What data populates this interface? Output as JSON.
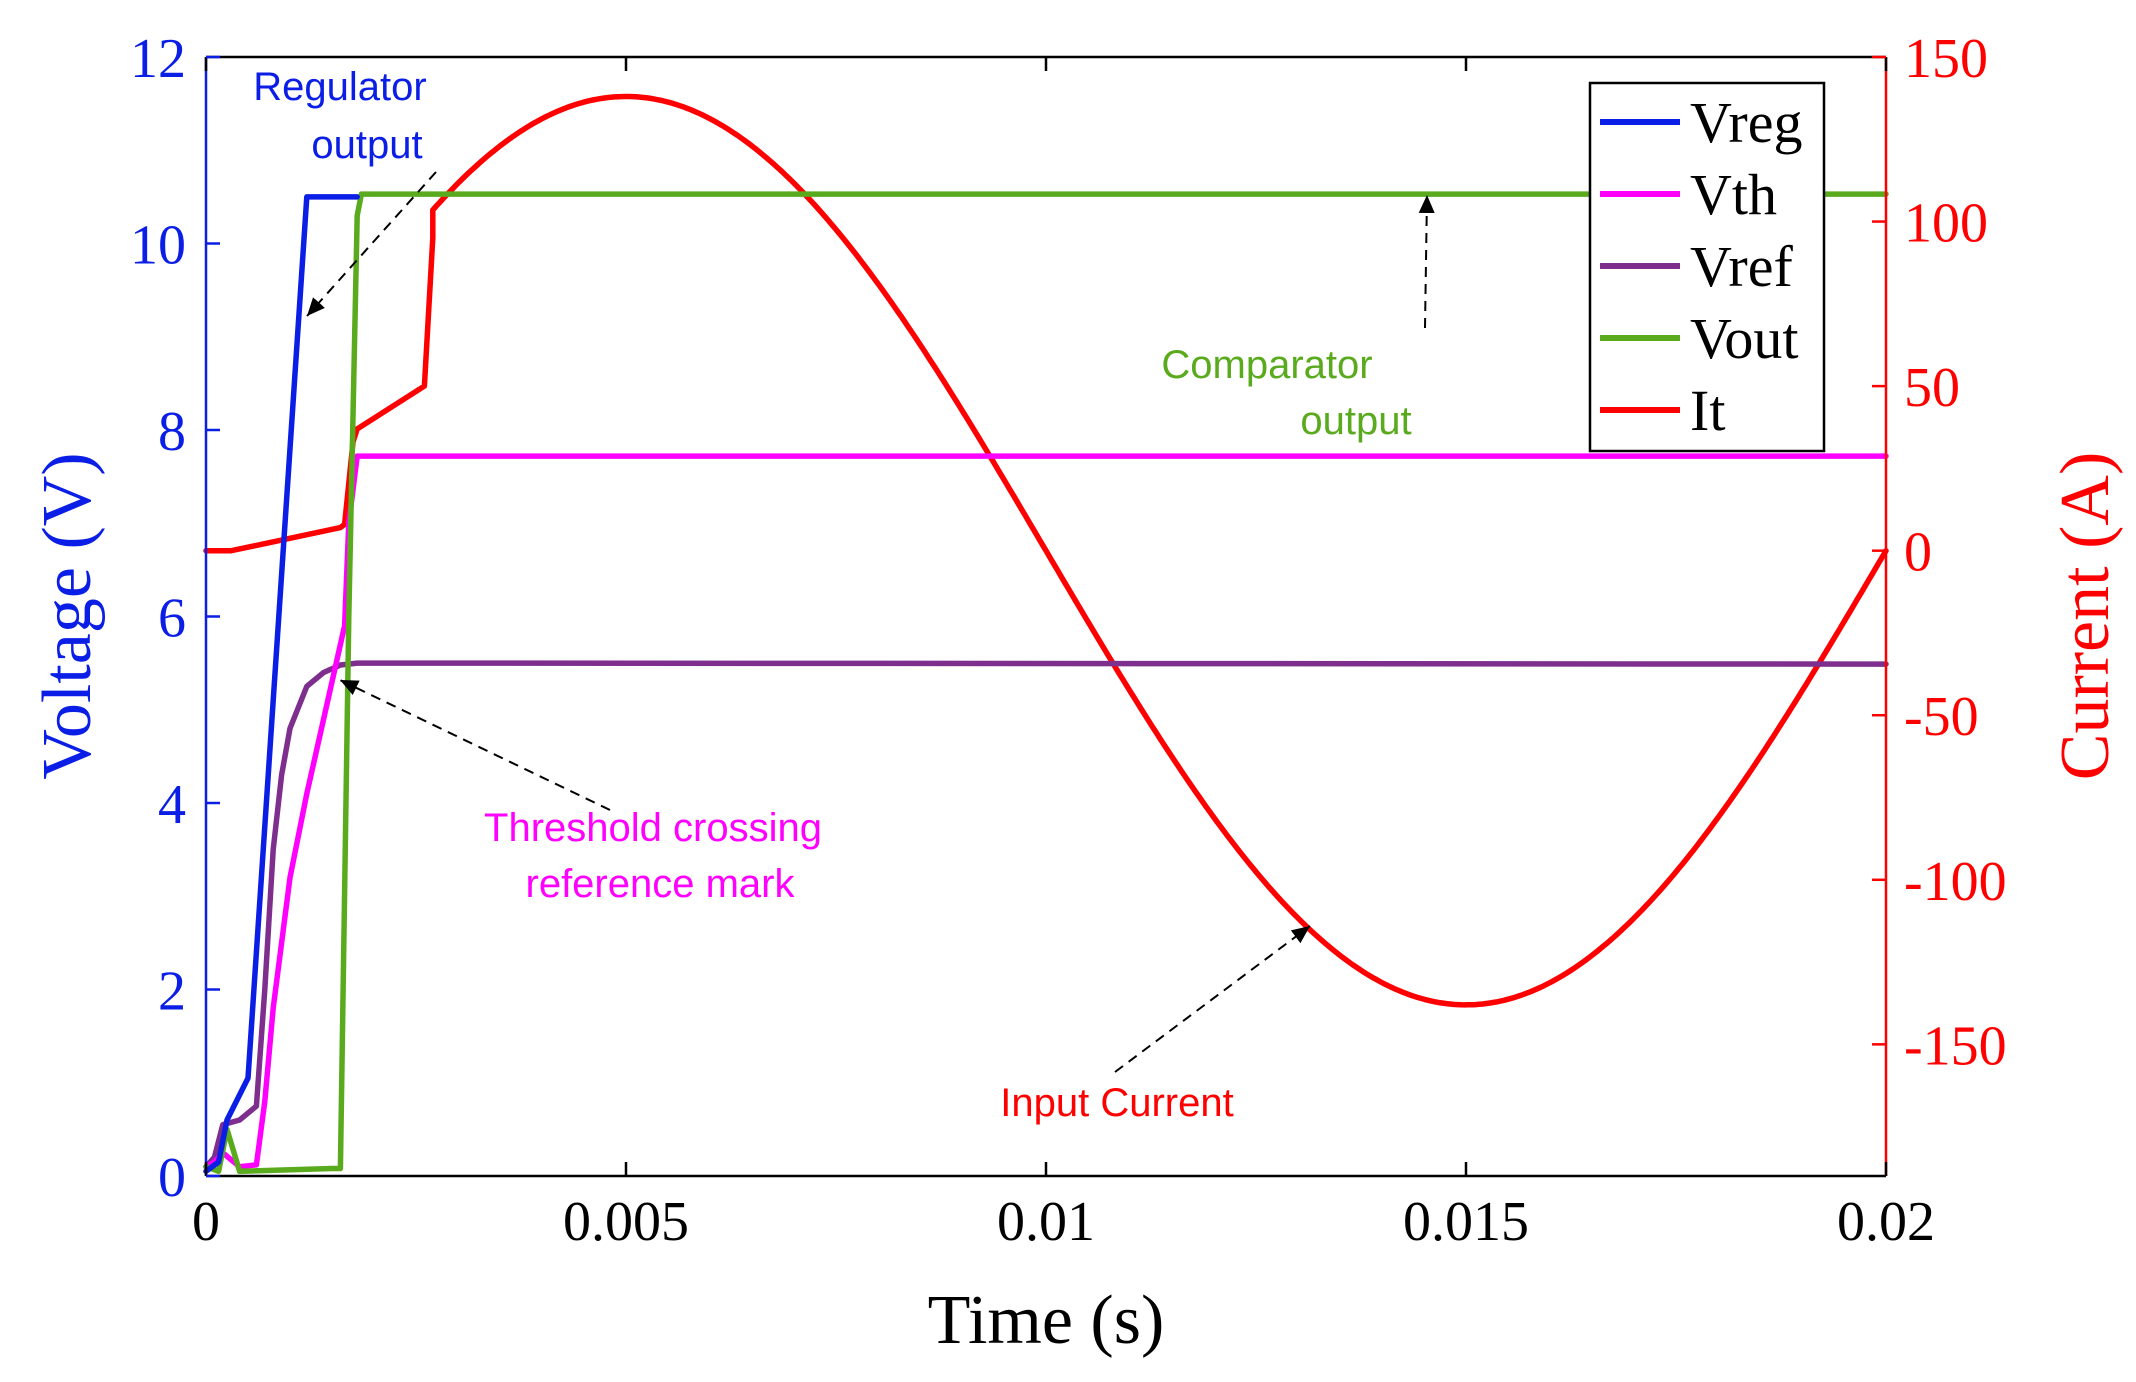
{
  "chart_data": {
    "type": "line",
    "title": "",
    "xlabel": "Time (s)",
    "ylabel_left": "Voltage (V)",
    "ylabel_right": "Current (A)",
    "xlim": [
      0,
      0.02
    ],
    "ylim_left": [
      0,
      12
    ],
    "ylim_right": [
      -190,
      150
    ],
    "grid": false,
    "legend_position": "top-right",
    "x_ticks": [
      {
        "value": 0,
        "label": "0"
      },
      {
        "value": 0.005,
        "label": "0.005"
      },
      {
        "value": 0.01,
        "label": "0.01"
      },
      {
        "value": 0.015,
        "label": "0.015"
      },
      {
        "value": 0.02,
        "label": "0.02"
      }
    ],
    "y_left_ticks": [
      {
        "value": 0,
        "label": "0"
      },
      {
        "value": 2,
        "label": "2"
      },
      {
        "value": 4,
        "label": "4"
      },
      {
        "value": 6,
        "label": "6"
      },
      {
        "value": 8,
        "label": "8"
      },
      {
        "value": 10,
        "label": "10"
      },
      {
        "value": 12,
        "label": "12"
      }
    ],
    "y_right_ticks": [
      {
        "value": 150,
        "label": "150"
      },
      {
        "value": 100,
        "label": "100"
      },
      {
        "value": 50,
        "label": "50"
      },
      {
        "value": 0,
        "label": "0"
      },
      {
        "value": -50,
        "label": "-50"
      },
      {
        "value": -100,
        "label": "-100"
      },
      {
        "value": -150,
        "label": "-150"
      }
    ],
    "series": [
      {
        "name": "Vreg",
        "axis": "left",
        "color": "#0a1ee6",
        "x": [
          0,
          0.00015,
          0.00025,
          0.0005,
          0.0012,
          0.0013,
          0.0018
        ],
        "y": [
          0.05,
          0.15,
          0.6,
          1.05,
          10.5,
          10.5,
          10.5
        ]
      },
      {
        "name": "Vth",
        "axis": "left",
        "color": "#ff00ff",
        "x": [
          0,
          0.0001,
          0.0002,
          0.0004,
          0.0006,
          0.0007,
          0.0008,
          0.001,
          0.0012,
          0.0014,
          0.00165,
          0.0017,
          0.0018,
          0.0019,
          0.02
        ],
        "y": [
          0.1,
          0.15,
          0.25,
          0.1,
          0.12,
          0.8,
          1.8,
          3.2,
          4.1,
          4.9,
          5.9,
          7.0,
          7.72,
          7.72,
          7.72
        ]
      },
      {
        "name": "Vref",
        "axis": "left",
        "color": "#7e2f8e",
        "x": [
          0,
          0.0001,
          0.0002,
          0.0004,
          0.0006,
          0.0007,
          0.0008,
          0.0009,
          0.001,
          0.0012,
          0.0014,
          0.0016,
          0.0018,
          0.0025,
          0.02
        ],
        "y": [
          0.1,
          0.2,
          0.55,
          0.6,
          0.75,
          2.0,
          3.5,
          4.3,
          4.8,
          5.25,
          5.4,
          5.48,
          5.5,
          5.5,
          5.49
        ]
      },
      {
        "name": "Vout",
        "axis": "left",
        "color": "#5aaa1e",
        "x": [
          0,
          0.00015,
          0.00025,
          0.0004,
          0.0015,
          0.0016,
          0.0017,
          0.0018,
          0.00185,
          0.02
        ],
        "y": [
          0.1,
          0.05,
          0.5,
          0.05,
          0.08,
          0.08,
          6.0,
          10.3,
          10.53,
          10.53
        ]
      },
      {
        "name": "It",
        "axis": "right",
        "color": "#ff0000",
        "generator": "sine",
        "amplitude": 138,
        "frequency_hz": 50,
        "start_time": 0.0027,
        "end_time": 0.02,
        "startup_x": [
          0,
          0.0003,
          0.0016,
          0.00165,
          0.00175,
          0.0018,
          0.0026,
          0.0027
        ],
        "startup_y": [
          0,
          0,
          7,
          8,
          33,
          37,
          50,
          95
        ]
      }
    ],
    "annotations": [
      {
        "text_lines": [
          "Regulator",
          "output"
        ],
        "color": "#0a1ee6",
        "points_to_series": "Vreg"
      },
      {
        "text_lines": [
          "Comparator",
          "output"
        ],
        "color": "#5aaa1e",
        "points_to_series": "Vout"
      },
      {
        "text_lines": [
          "Threshold crossing",
          "reference mark"
        ],
        "color": "#ff00ff",
        "points_to_series": "Vref"
      },
      {
        "text_lines": [
          "Input Current"
        ],
        "color": "#ff0000",
        "points_to_series": "It"
      }
    ]
  }
}
